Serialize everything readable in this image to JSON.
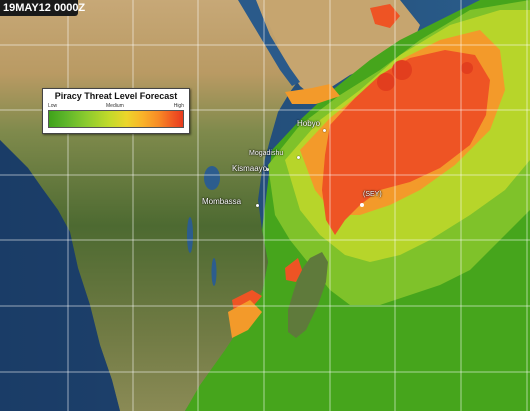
{
  "timestamp": "19MAY12 0000Z",
  "legend": {
    "title": "Piracy Threat Level Forecast",
    "scale_low": "Low",
    "scale_mid": "Medium",
    "scale_high": "High"
  },
  "places": {
    "hobyo": "Hobyo",
    "mogadishu": "Mogadishu",
    "kismaayo": "Kismaayo",
    "mombassa": "Mombassa",
    "sey": "(SEY)"
  },
  "colors": {
    "ocean": "#24507a",
    "threat_low": "#3fa21a",
    "threat_medium": "#c2da2a",
    "threat_high": "#e83a1e"
  }
}
